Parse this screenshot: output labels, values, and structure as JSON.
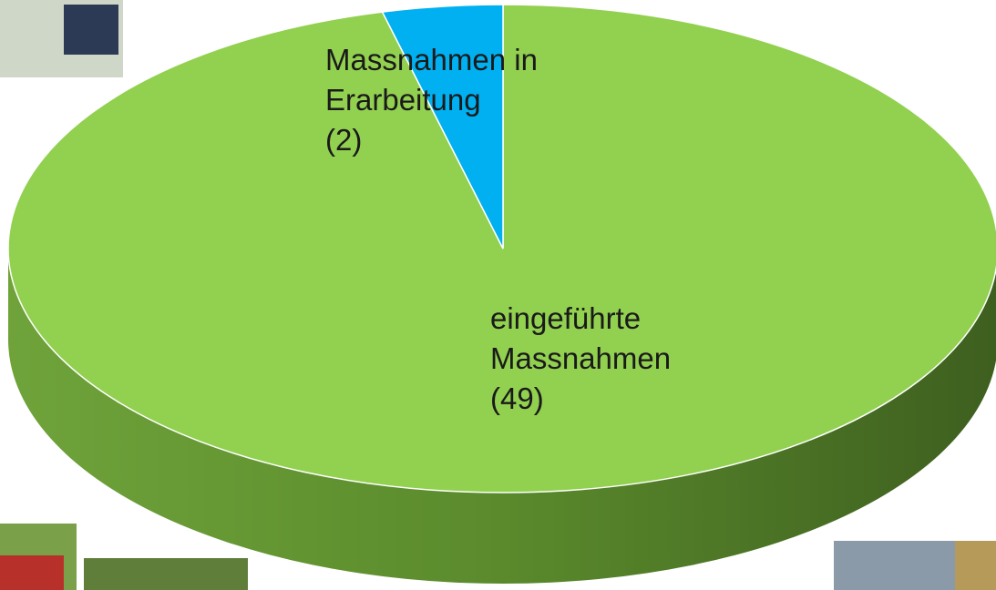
{
  "chart_data": {
    "type": "pie3d",
    "categories": [
      "Massnahmen in Erarbeitung",
      "eingeführte Massnahmen"
    ],
    "values": [
      2,
      49
    ],
    "value_labels": [
      "(2)",
      "(49)"
    ],
    "colors": [
      "#00b0f0",
      "#92d050"
    ]
  }
}
